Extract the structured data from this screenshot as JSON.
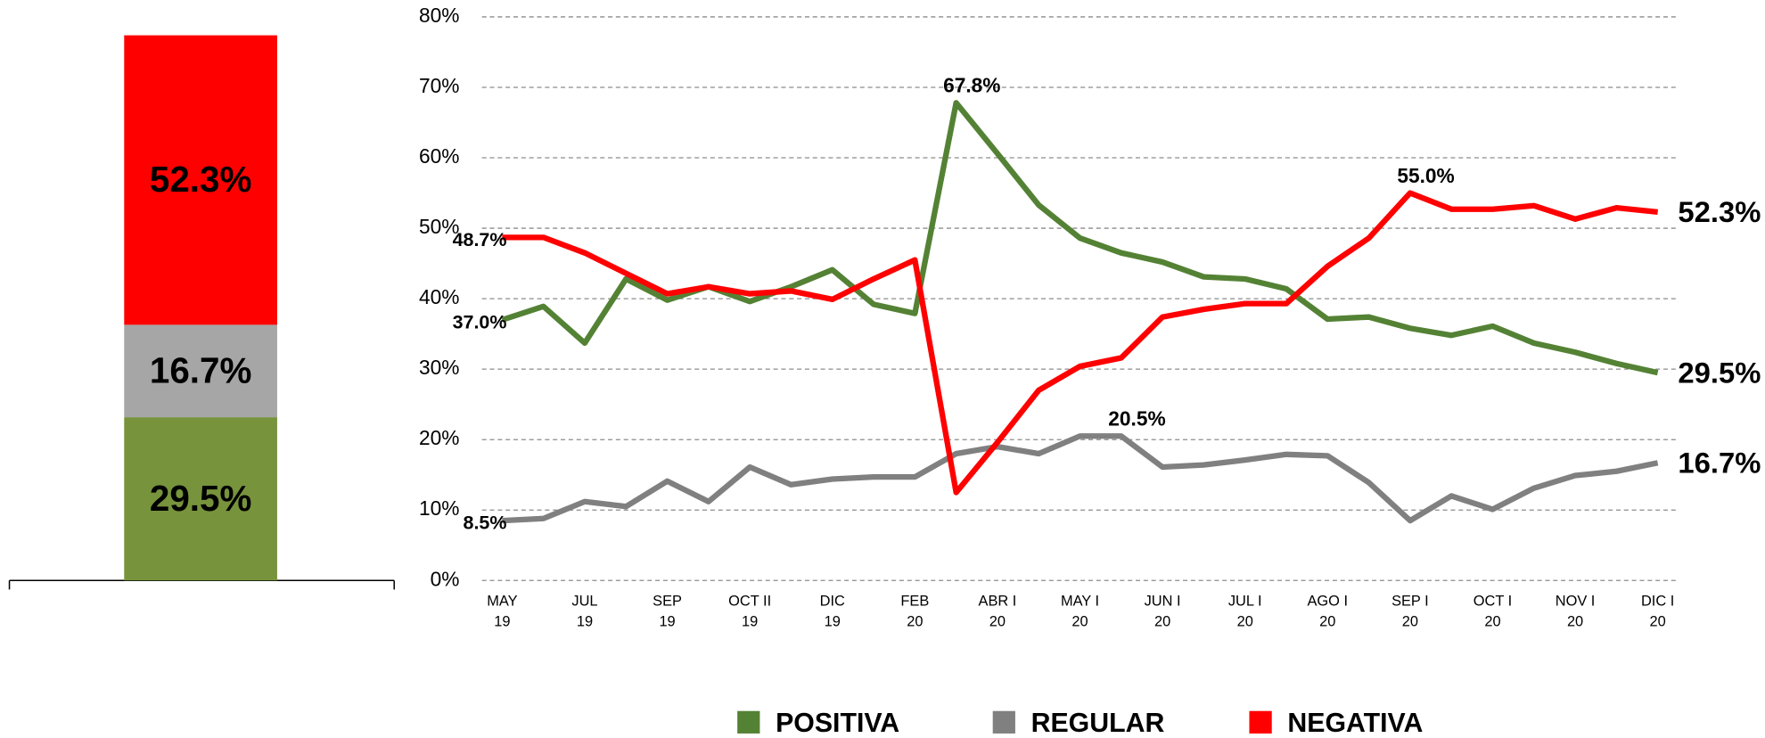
{
  "chart_data": [
    {
      "type": "stacked_bar",
      "values": [
        29.5,
        16.7,
        52.3
      ],
      "value_labels": [
        "29.5%",
        "16.7%",
        "52.3%"
      ],
      "colors": [
        "#77933c",
        "#a6a6a6",
        "#ff0000"
      ],
      "label_colors": [
        "#ffffff",
        "#000000",
        "#ffffff"
      ],
      "ylim": [
        0,
        100
      ]
    },
    {
      "type": "line",
      "categories": [
        [
          "MAY",
          "19"
        ],
        null,
        [
          "JUL",
          "19"
        ],
        null,
        [
          "SEP",
          "19"
        ],
        null,
        [
          "OCT II",
          "19"
        ],
        null,
        [
          "DIC",
          "19"
        ],
        null,
        [
          "FEB",
          "20"
        ],
        null,
        [
          "ABR I",
          "20"
        ],
        null,
        [
          "MAY I",
          "20"
        ],
        null,
        [
          "JUN I",
          "20"
        ],
        null,
        [
          "JUL I",
          "20"
        ],
        null,
        [
          "AGO I",
          "20"
        ],
        null,
        [
          "SEP I",
          "20"
        ],
        null,
        [
          "OCT I",
          "20"
        ],
        null,
        [
          "NOV I",
          "20"
        ],
        null,
        [
          "DIC I",
          "20"
        ]
      ],
      "series": [
        {
          "name": "POSITIVA",
          "color": "#548235",
          "values": [
            37.0,
            38.9,
            33.7,
            42.8,
            39.8,
            41.7,
            39.6,
            41.7,
            44.1,
            39.2,
            37.9,
            67.8,
            60.6,
            53.3,
            48.6,
            46.5,
            45.2,
            43.1,
            42.8,
            41.4,
            37.1,
            37.4,
            35.8,
            34.8,
            36.1,
            33.7,
            32.4,
            30.8,
            29.5
          ],
          "value_labels": [
            "37.0%",
            null,
            null,
            null,
            null,
            null,
            null,
            null,
            null,
            null,
            null,
            "67.8%",
            null,
            null,
            null,
            null,
            null,
            null,
            null,
            null,
            null,
            null,
            null,
            null,
            null,
            null,
            null,
            null,
            "29.5%"
          ]
        },
        {
          "name": "REGULAR",
          "color": "#808080",
          "values": [
            8.5,
            8.8,
            11.2,
            10.5,
            14.1,
            11.2,
            16.1,
            13.6,
            14.4,
            14.7,
            14.7,
            18.0,
            19.0,
            18.0,
            20.5,
            20.5,
            16.1,
            16.4,
            17.1,
            17.9,
            17.7,
            13.9,
            8.5,
            12.0,
            10.1,
            13.1,
            14.9,
            15.5,
            16.7
          ],
          "value_labels": [
            "8.5%",
            null,
            null,
            null,
            null,
            null,
            null,
            null,
            null,
            null,
            null,
            null,
            null,
            null,
            null,
            "20.5%",
            null,
            null,
            null,
            null,
            null,
            null,
            null,
            null,
            null,
            null,
            null,
            null,
            "16.7%"
          ]
        },
        {
          "name": "NEGATIVA",
          "color": "#ff0000",
          "values": [
            48.7,
            48.7,
            46.5,
            43.6,
            40.7,
            41.7,
            40.7,
            41.1,
            39.9,
            42.8,
            45.5,
            12.5,
            19.6,
            27.0,
            30.4,
            31.6,
            37.4,
            38.5,
            39.3,
            39.3,
            44.6,
            48.6,
            55.0,
            52.7,
            52.7,
            53.2,
            51.3,
            52.9,
            52.3
          ],
          "value_labels": [
            "48.7%",
            null,
            null,
            null,
            null,
            null,
            null,
            null,
            null,
            null,
            null,
            null,
            null,
            null,
            null,
            null,
            null,
            null,
            null,
            null,
            null,
            null,
            "55.0%",
            null,
            null,
            null,
            null,
            null,
            "52.3%"
          ]
        }
      ],
      "ylim": [
        0,
        80
      ],
      "yticks": [
        {
          "value": 0,
          "label": "0%"
        },
        {
          "value": 10,
          "label": "10%"
        },
        {
          "value": 20,
          "label": "20%"
        },
        {
          "value": 30,
          "label": "30%"
        },
        {
          "value": 40,
          "label": "40%"
        },
        {
          "value": 50,
          "label": "50%"
        },
        {
          "value": 60,
          "label": "60%"
        },
        {
          "value": 70,
          "label": "70%"
        },
        {
          "value": 80,
          "label": "80%"
        }
      ],
      "grid": true,
      "legend": "bottom"
    }
  ]
}
